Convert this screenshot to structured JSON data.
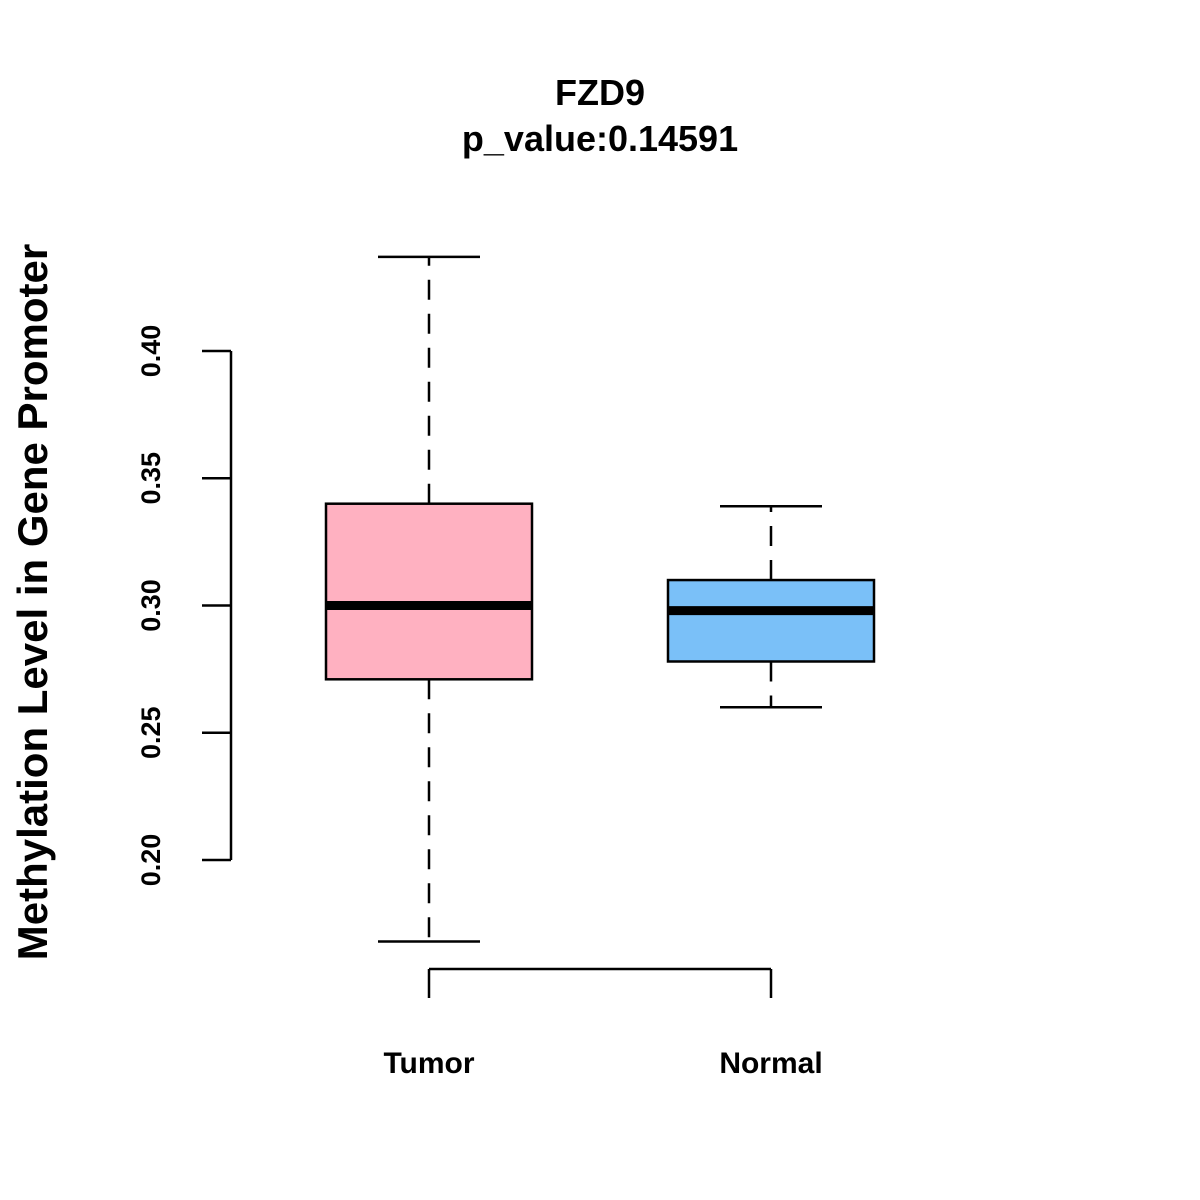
{
  "chart_data": {
    "type": "box",
    "title": "FZD9",
    "subtitle": "p_value:0.14591",
    "xlabel": "",
    "ylabel": "Methylation Level in Gene Promoter",
    "ylim": [
      0.2,
      0.4
    ],
    "yticks": [
      0.2,
      0.25,
      0.3,
      0.35,
      0.4
    ],
    "ytick_labels": [
      "0.20",
      "0.25",
      "0.30",
      "0.35",
      "0.40"
    ],
    "categories": [
      "Tumor",
      "Normal"
    ],
    "series": [
      {
        "name": "Tumor",
        "whisker_low": 0.168,
        "q1": 0.271,
        "median": 0.3,
        "q3": 0.34,
        "whisker_high": 0.437,
        "color": "#FFB1C1"
      },
      {
        "name": "Normal",
        "whisker_low": 0.26,
        "q1": 0.278,
        "median": 0.298,
        "q3": 0.31,
        "whisker_high": 0.339,
        "color": "#7AC0F8"
      }
    ],
    "grid": false,
    "legend": "none"
  }
}
